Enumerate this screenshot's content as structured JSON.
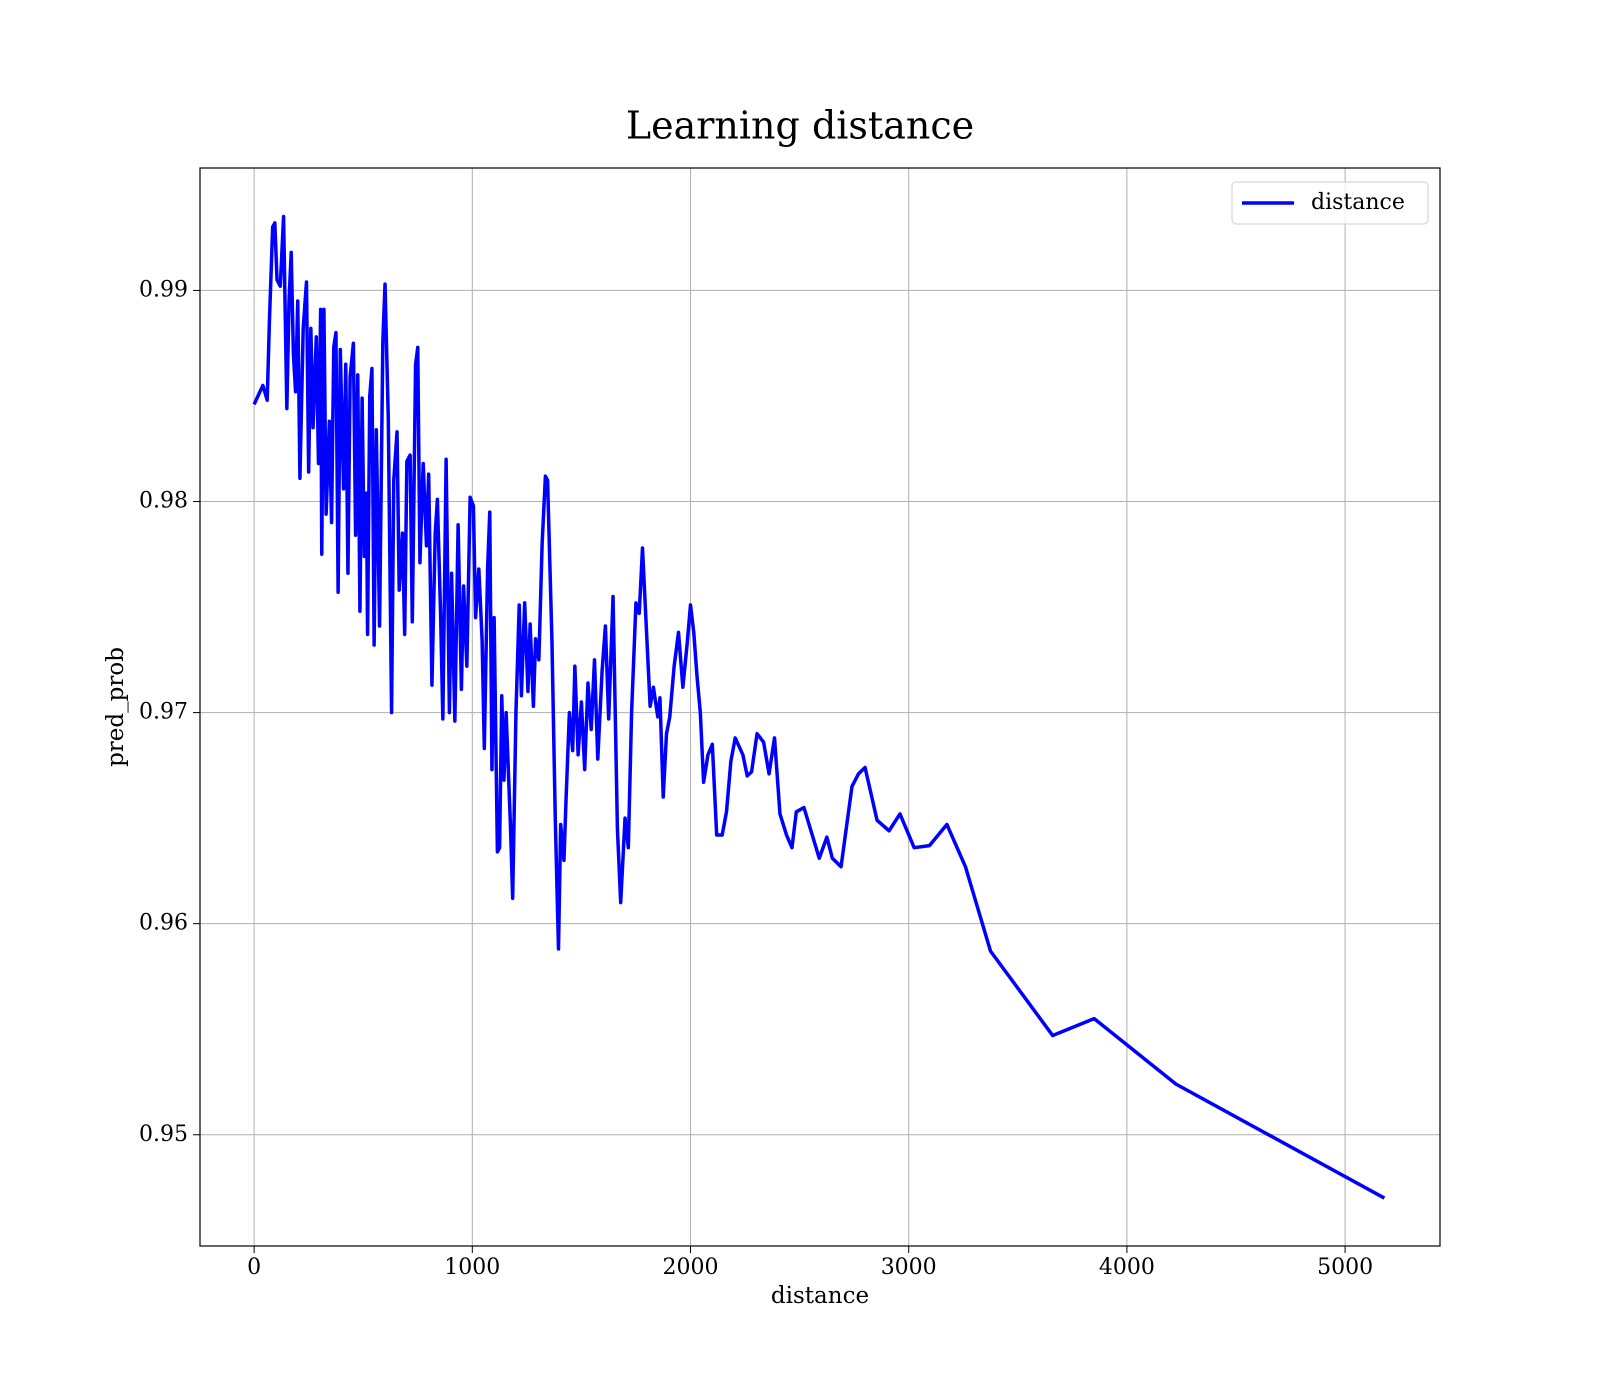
{
  "chart_data": {
    "type": "line",
    "title": "Learning distance",
    "xlabel": "distance",
    "ylabel": "pred_prob",
    "x": [
      0,
      40,
      60,
      70,
      85,
      95,
      105,
      120,
      135,
      150,
      160,
      170,
      180,
      190,
      200,
      210,
      225,
      240,
      250,
      260,
      270,
      285,
      295,
      305,
      310,
      320,
      330,
      345,
      355,
      365,
      375,
      385,
      395,
      410,
      420,
      430,
      440,
      455,
      465,
      475,
      485,
      495,
      505,
      515,
      520,
      530,
      540,
      550,
      560,
      575,
      590,
      600,
      615,
      630,
      640,
      655,
      665,
      680,
      690,
      700,
      715,
      725,
      740,
      750,
      760,
      775,
      790,
      800,
      815,
      830,
      840,
      855,
      865,
      880,
      895,
      905,
      920,
      935,
      950,
      960,
      975,
      990,
      1005,
      1015,
      1030,
      1045,
      1055,
      1070,
      1080,
      1090,
      1100,
      1115,
      1125,
      1135,
      1145,
      1155,
      1175,
      1185,
      1200,
      1215,
      1225,
      1240,
      1255,
      1265,
      1280,
      1290,
      1305,
      1320,
      1335,
      1345,
      1365,
      1380,
      1395,
      1405,
      1420,
      1430,
      1445,
      1460,
      1470,
      1485,
      1500,
      1515,
      1530,
      1545,
      1560,
      1575,
      1595,
      1610,
      1625,
      1645,
      1665,
      1680,
      1700,
      1715,
      1730,
      1750,
      1765,
      1780,
      1800,
      1815,
      1830,
      1850,
      1860,
      1875,
      1890,
      1905,
      1925,
      1945,
      1965,
      1985,
      2000,
      2015,
      2030,
      2045,
      2060,
      2080,
      2100,
      2120,
      2145,
      2165,
      2185,
      2205,
      2240,
      2260,
      2280,
      2305,
      2335,
      2360,
      2385,
      2410,
      2440,
      2465,
      2485,
      2520,
      2555,
      2590,
      2625,
      2650,
      2690,
      2740,
      2770,
      2800,
      2855,
      2910,
      2960,
      3025,
      3095,
      3175,
      3260,
      3375,
      3660,
      3850,
      4225,
      5180
    ],
    "series": [
      {
        "name": "distance",
        "color": "#0000ff",
        "values": [
          0.9846,
          0.9855,
          0.9848,
          0.9885,
          0.993,
          0.9932,
          0.9905,
          0.9902,
          0.9935,
          0.9844,
          0.9895,
          0.9918,
          0.987,
          0.9852,
          0.9895,
          0.9811,
          0.9882,
          0.9904,
          0.9814,
          0.9882,
          0.9835,
          0.9878,
          0.9818,
          0.9891,
          0.9775,
          0.9891,
          0.9794,
          0.9838,
          0.979,
          0.9873,
          0.988,
          0.9757,
          0.9872,
          0.9806,
          0.9865,
          0.9766,
          0.9859,
          0.9875,
          0.9784,
          0.986,
          0.9748,
          0.9849,
          0.9774,
          0.9804,
          0.9737,
          0.985,
          0.9863,
          0.9732,
          0.9834,
          0.9741,
          0.9876,
          0.9903,
          0.9839,
          0.97,
          0.981,
          0.9833,
          0.9758,
          0.9785,
          0.9737,
          0.9819,
          0.9822,
          0.9743,
          0.9865,
          0.9873,
          0.9771,
          0.9818,
          0.9779,
          0.9813,
          0.9713,
          0.9785,
          0.9801,
          0.9745,
          0.9697,
          0.982,
          0.97,
          0.9766,
          0.9696,
          0.9789,
          0.9711,
          0.976,
          0.9722,
          0.9802,
          0.9798,
          0.9745,
          0.9768,
          0.9734,
          0.9683,
          0.9768,
          0.9795,
          0.9673,
          0.9745,
          0.9634,
          0.9636,
          0.9708,
          0.9668,
          0.97,
          0.9646,
          0.9612,
          0.97,
          0.9751,
          0.9708,
          0.9752,
          0.971,
          0.9742,
          0.9703,
          0.9735,
          0.9725,
          0.978,
          0.9812,
          0.981,
          0.9734,
          0.9651,
          0.9588,
          0.9647,
          0.963,
          0.966,
          0.97,
          0.9682,
          0.9722,
          0.968,
          0.9705,
          0.9673,
          0.9714,
          0.9692,
          0.9725,
          0.9678,
          0.972,
          0.9741,
          0.9697,
          0.9755,
          0.9645,
          0.961,
          0.965,
          0.9636,
          0.97,
          0.9752,
          0.9747,
          0.9778,
          0.9735,
          0.9703,
          0.9712,
          0.9698,
          0.9707,
          0.966,
          0.969,
          0.9698,
          0.9722,
          0.9738,
          0.9712,
          0.9733,
          0.9751,
          0.9738,
          0.9717,
          0.97,
          0.9667,
          0.968,
          0.9685,
          0.9642,
          0.9642,
          0.9653,
          0.9677,
          0.9688,
          0.968,
          0.967,
          0.9672,
          0.969,
          0.9686,
          0.9671,
          0.9688,
          0.9652,
          0.9642,
          0.9636,
          0.9653,
          0.9655,
          0.9643,
          0.9631,
          0.9641,
          0.9631,
          0.9627,
          0.9665,
          0.9671,
          0.9674,
          0.9649,
          0.9644,
          0.9652,
          0.9636,
          0.9637,
          0.9647,
          0.9627,
          0.9587,
          0.9547,
          0.9555,
          0.9524,
          0.947
        ]
      }
    ],
    "xlim": [
      -248,
      5435
    ],
    "ylim": [
      0.94473,
      0.9958
    ],
    "xticks": [
      0,
      1000,
      2000,
      3000,
      4000,
      5000
    ],
    "yticks": [
      0.95,
      0.96,
      0.97,
      0.98,
      0.99
    ],
    "grid": true,
    "legend": "upper right"
  }
}
